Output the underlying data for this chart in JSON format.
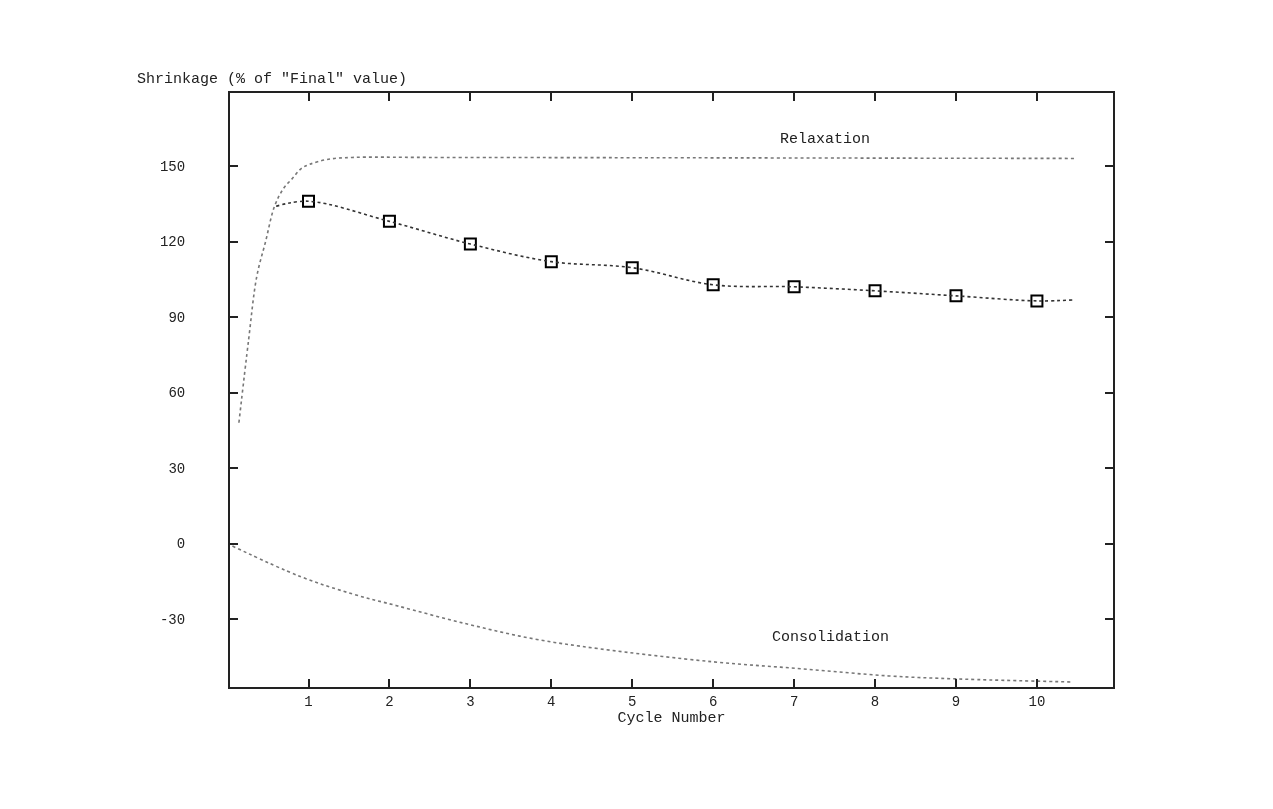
{
  "chart_data": {
    "type": "line",
    "xlabel": "Cycle Number",
    "ylabel": "Shrinkage (% of \"Final\" value)",
    "xlim": [
      0.03,
      10.94
    ],
    "ylim": [
      -57,
      179
    ],
    "xticks": [
      1,
      2,
      3,
      4,
      5,
      6,
      7,
      8,
      9,
      10
    ],
    "yticks": [
      -30,
      0,
      30,
      60,
      90,
      120,
      150
    ],
    "series": [
      {
        "type": "scatter",
        "color": "#000000",
        "marker": "square",
        "x": [
          1,
          2,
          3,
          4,
          5,
          6,
          7,
          8,
          9,
          10
        ],
        "values": [
          136,
          128,
          119,
          112,
          109.6,
          102.8,
          102,
          100.4,
          98.4,
          96.4
        ]
      },
      {
        "color": "#333333",
        "marker": "none",
        "line_style": "dotted",
        "x": [
          0.6,
          1,
          2,
          3,
          4,
          5,
          6,
          7,
          8,
          9,
          10,
          10.46
        ],
        "values": [
          134,
          136,
          128,
          119,
          112,
          109.6,
          102.8,
          102,
          100.4,
          98.4,
          96.4,
          96.8
        ]
      },
      {
        "color": "#777777",
        "marker": "none",
        "line_style": "dotted",
        "x": [
          0.14,
          0.26,
          0.36,
          0.47,
          0.58,
          0.69,
          0.8,
          0.91,
          1.01,
          1.23,
          1.54,
          2.5,
          10.46
        ],
        "values": [
          48,
          81,
          106,
          120,
          134,
          141,
          145,
          149,
          150.6,
          152.6,
          153.4,
          153.4,
          153
        ]
      },
      {
        "color": "#777777",
        "marker": "none",
        "line_style": "dotted",
        "x": [
          0.06,
          0.89,
          1.54,
          2.09,
          2.95,
          3.77,
          4.59,
          6.0,
          7.11,
          8.17,
          9.02,
          10.43
        ],
        "values": [
          -1,
          -13,
          -20,
          -24.7,
          -31.9,
          -37.8,
          -41.8,
          -47,
          -49.8,
          -52.6,
          -53.8,
          -55
        ]
      }
    ],
    "annotations": [
      "Relaxation",
      "Consolidation"
    ]
  }
}
